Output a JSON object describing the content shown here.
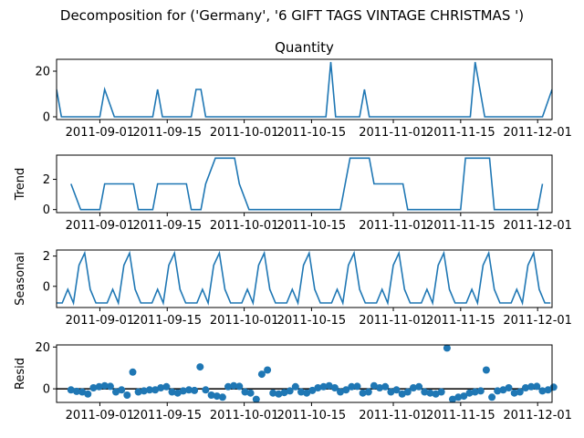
{
  "figure": {
    "suptitle": "Decomposition for ('Germany', '6 GIFT TAGS VINTAGE CHRISTMAS ')"
  },
  "colors": {
    "series": "#1f77b4",
    "zero_line": "#000000",
    "frame": "#000000"
  },
  "chart_data": [
    {
      "type": "line",
      "title": "Quantity",
      "ylabel": "",
      "x_start": "2011-08-23",
      "x_end": "2011-12-04",
      "ylim": [
        -1.2,
        25.2
      ],
      "yticks": [
        0,
        20
      ],
      "xtick_labels": [
        "2011-09-01",
        "2011-09-15",
        "2011-10-01",
        "2011-10-15",
        "2011-11-01",
        "2011-11-15",
        "2011-12-01"
      ],
      "x": [
        "2011-08-23",
        "2011-08-24",
        "2011-08-25",
        "2011-08-26",
        "2011-08-28",
        "2011-08-29",
        "2011-08-30",
        "2011-08-31",
        "2011-09-01",
        "2011-09-02",
        "2011-09-04",
        "2011-09-05",
        "2011-09-06",
        "2011-09-07",
        "2011-09-08",
        "2011-09-09",
        "2011-09-11",
        "2011-09-12",
        "2011-09-13",
        "2011-09-14",
        "2011-09-15",
        "2011-09-16",
        "2011-09-18",
        "2011-09-19",
        "2011-09-20",
        "2011-09-21",
        "2011-09-22",
        "2011-09-23",
        "2011-09-25",
        "2011-09-26",
        "2011-09-27",
        "2011-09-28",
        "2011-09-29",
        "2011-09-30",
        "2011-10-02",
        "2011-10-03",
        "2011-10-04",
        "2011-10-05",
        "2011-10-06",
        "2011-10-07",
        "2011-10-09",
        "2011-10-10",
        "2011-10-11",
        "2011-10-12",
        "2011-10-13",
        "2011-10-14",
        "2011-10-16",
        "2011-10-17",
        "2011-10-18",
        "2011-10-19",
        "2011-10-20",
        "2011-10-21",
        "2011-10-23",
        "2011-10-24",
        "2011-10-25",
        "2011-10-26",
        "2011-10-27",
        "2011-10-28",
        "2011-10-30",
        "2011-10-31",
        "2011-11-01",
        "2011-11-02",
        "2011-11-03",
        "2011-11-04",
        "2011-11-06",
        "2011-11-07",
        "2011-11-08",
        "2011-11-09",
        "2011-11-10",
        "2011-11-11",
        "2011-11-13",
        "2011-11-14",
        "2011-11-15",
        "2011-11-16",
        "2011-11-17",
        "2011-11-18",
        "2011-11-20",
        "2011-11-21",
        "2011-11-22",
        "2011-11-23",
        "2011-11-24",
        "2011-11-25",
        "2011-11-27",
        "2011-11-28",
        "2011-11-29",
        "2011-11-30",
        "2011-12-01",
        "2011-12-02",
        "2011-12-04"
      ],
      "values": [
        12,
        0,
        0,
        0,
        0,
        0,
        0,
        0,
        0,
        12,
        0,
        0,
        0,
        0,
        0,
        0,
        0,
        0,
        12,
        0,
        0,
        0,
        0,
        0,
        0,
        12,
        12,
        0,
        0,
        0,
        0,
        0,
        0,
        0,
        0,
        0,
        0,
        0,
        0,
        0,
        0,
        0,
        0,
        0,
        0,
        0,
        0,
        0,
        0,
        24,
        0,
        0,
        0,
        0,
        0,
        12,
        0,
        0,
        0,
        0,
        0,
        0,
        0,
        0,
        0,
        0,
        0,
        0,
        0,
        0,
        0,
        0,
        0,
        0,
        0,
        24,
        0,
        0,
        0,
        0,
        0,
        0,
        0,
        0,
        0,
        0,
        0,
        0,
        12
      ]
    },
    {
      "type": "line",
      "title": "",
      "ylabel": "Trend",
      "ylim": [
        -0.2,
        3.6
      ],
      "yticks": [
        0,
        2
      ],
      "xtick_labels": [
        "2011-09-01",
        "2011-09-15",
        "2011-10-01",
        "2011-10-15",
        "2011-11-01",
        "2011-11-15",
        "2011-12-01"
      ],
      "x": [
        "2011-08-26",
        "2011-08-28",
        "2011-08-29",
        "2011-08-30",
        "2011-08-31",
        "2011-09-01",
        "2011-09-02",
        "2011-09-04",
        "2011-09-05",
        "2011-09-06",
        "2011-09-07",
        "2011-09-08",
        "2011-09-09",
        "2011-09-11",
        "2011-09-12",
        "2011-09-13",
        "2011-09-14",
        "2011-09-15",
        "2011-09-16",
        "2011-09-18",
        "2011-09-19",
        "2011-09-20",
        "2011-09-21",
        "2011-09-22",
        "2011-09-23",
        "2011-09-25",
        "2011-09-26",
        "2011-09-27",
        "2011-09-28",
        "2011-09-29",
        "2011-09-30",
        "2011-10-02",
        "2011-10-03",
        "2011-10-04",
        "2011-10-05",
        "2011-10-06",
        "2011-10-07",
        "2011-10-09",
        "2011-10-10",
        "2011-10-11",
        "2011-10-12",
        "2011-10-13",
        "2011-10-14",
        "2011-10-16",
        "2011-10-17",
        "2011-10-18",
        "2011-10-19",
        "2011-10-20",
        "2011-10-21",
        "2011-10-23",
        "2011-10-24",
        "2011-10-25",
        "2011-10-26",
        "2011-10-27",
        "2011-10-28",
        "2011-10-30",
        "2011-10-31",
        "2011-11-01",
        "2011-11-02",
        "2011-11-03",
        "2011-11-04",
        "2011-11-06",
        "2011-11-07",
        "2011-11-08",
        "2011-11-09",
        "2011-11-10",
        "2011-11-11",
        "2011-11-13",
        "2011-11-14",
        "2011-11-15",
        "2011-11-16",
        "2011-11-17",
        "2011-11-18",
        "2011-11-20",
        "2011-11-21",
        "2011-11-22",
        "2011-11-23",
        "2011-11-24",
        "2011-11-25",
        "2011-11-27",
        "2011-11-28",
        "2011-11-29",
        "2011-11-30",
        "2011-12-01",
        "2011-12-02"
      ],
      "values": [
        1.7,
        0,
        0,
        0,
        0,
        0,
        1.7,
        1.7,
        1.7,
        1.7,
        1.7,
        1.7,
        0,
        0,
        0,
        1.7,
        1.7,
        1.7,
        1.7,
        1.7,
        1.7,
        0,
        0,
        0,
        1.7,
        3.4,
        3.4,
        3.4,
        3.4,
        3.4,
        1.7,
        0,
        0,
        0,
        0,
        0,
        0,
        0,
        0,
        0,
        0,
        0,
        0,
        0,
        0,
        0,
        0,
        0,
        0,
        3.4,
        3.4,
        3.4,
        3.4,
        3.4,
        1.7,
        1.7,
        1.7,
        1.7,
        1.7,
        1.7,
        0,
        0,
        0,
        0,
        0,
        0,
        0,
        0,
        0,
        0,
        3.4,
        3.4,
        3.4,
        3.4,
        3.4,
        0,
        0,
        0,
        0,
        0,
        0,
        0,
        0,
        0,
        1.7
      ]
    },
    {
      "type": "line",
      "title": "",
      "ylabel": "Seasonal",
      "ylim": [
        -1.4,
        2.4
      ],
      "yticks": [
        0,
        2
      ],
      "xtick_labels": [
        "2011-09-01",
        "2011-09-15",
        "2011-10-01",
        "2011-10-15",
        "2011-11-01",
        "2011-11-15",
        "2011-12-01"
      ],
      "x_start": "2011-08-23",
      "x_step_days": 1.1666,
      "period_pattern": [
        -1.1,
        -1.1,
        -0.2,
        -1.1,
        1.4,
        2.2,
        -0.2,
        -1.1
      ],
      "period_count": 89
    },
    {
      "type": "scatter",
      "title": "",
      "ylabel": "Resid",
      "ylim": [
        -6.5,
        21
      ],
      "yticks": [
        0,
        20
      ],
      "zero_line": true,
      "xtick_labels": [
        "2011-09-01",
        "2011-09-15",
        "2011-10-01",
        "2011-10-15",
        "2011-11-01",
        "2011-11-15",
        "2011-12-01"
      ],
      "x_start": "2011-08-26",
      "x_step_days": 1.1666,
      "values": [
        -0.5,
        -1.2,
        -1.5,
        -2.5,
        0.5,
        1.0,
        1.5,
        1.2,
        -1.5,
        -0.5,
        -3.0,
        8.0,
        -1.5,
        -1.0,
        -0.5,
        -0.5,
        0.5,
        1.0,
        -1.5,
        -2.0,
        -1.0,
        -0.5,
        -0.8,
        10.5,
        -0.5,
        -3.0,
        -3.5,
        -4.0,
        1.0,
        1.5,
        1.2,
        -1.5,
        -2.0,
        -5.0,
        7.0,
        9.0,
        -2.0,
        -2.5,
        -1.8,
        -1.0,
        1.0,
        -1.5,
        -2.0,
        -0.8,
        0.5,
        1.0,
        1.5,
        0.5,
        -1.5,
        -0.5,
        1.0,
        1.2,
        -2.0,
        -1.5,
        1.5,
        0.5,
        1.0,
        -1.5,
        -0.5,
        -2.5,
        -1.5,
        0.5,
        1.0,
        -1.5,
        -2.0,
        -2.5,
        -1.5,
        19.5,
        -5.0,
        -4.0,
        -3.5,
        -2.0,
        -1.5,
        -1.0,
        9.0,
        -4.0,
        -1.0,
        -0.5,
        0.5,
        -2.0,
        -1.5,
        0.5,
        1.0,
        1.2,
        -1.0,
        -0.5,
        0.8
      ]
    }
  ]
}
